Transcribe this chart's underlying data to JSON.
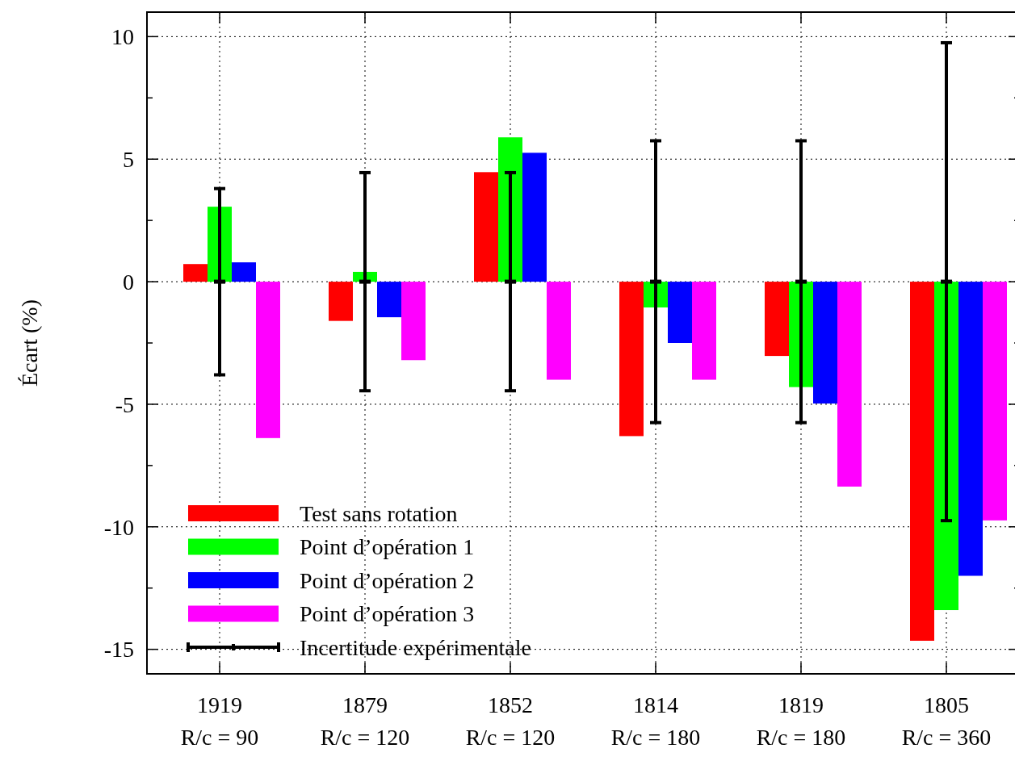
{
  "chart_data": {
    "type": "bar",
    "ylabel": "Écart (%)",
    "categories": [
      "1919\nR/c = 90",
      "1879\nR/c = 120",
      "1852\nR/c = 120",
      "1814\nR/c = 180",
      "1819\nR/c = 180",
      "1805\nR/c = 360"
    ],
    "series": [
      {
        "name": "Test sans rotation",
        "color": "#ff0000",
        "values": [
          0.72,
          -1.6,
          4.47,
          -6.3,
          -3.03,
          -14.65
        ]
      },
      {
        "name": "Point d’opération 1",
        "color": "#00ff00",
        "values": [
          3.06,
          0.4,
          5.89,
          -1.05,
          -4.3,
          -13.4
        ]
      },
      {
        "name": "Point d’opération 2",
        "color": "#0000ff",
        "values": [
          0.79,
          -1.45,
          5.26,
          -2.5,
          -4.97,
          -12.0
        ]
      },
      {
        "name": "Point d’opération 3",
        "color": "#ff00ff",
        "values": [
          -6.38,
          -3.2,
          -4.0,
          -4.0,
          -8.36,
          -9.74
        ]
      },
      {
        "name": "Incertitude expérimentale",
        "type": "scatter",
        "marker": "square",
        "color": "#000000",
        "values": [
          0,
          0,
          0,
          0,
          0,
          0
        ],
        "errors": [
          3.8,
          4.45,
          4.45,
          5.75,
          5.75,
          9.75
        ]
      }
    ],
    "ylim": [
      -16,
      11
    ],
    "yticks": [
      -15,
      {
        "value": -12.5,
        "label": null
      },
      -10,
      {
        "value": -7.5,
        "label": null
      },
      -5,
      {
        "value": -2.5,
        "label": null
      },
      0,
      {
        "value": 2.5,
        "label": null
      },
      5,
      {
        "value": 7.5,
        "label": null
      },
      10
    ],
    "grid": true,
    "legend": "bottom left"
  }
}
